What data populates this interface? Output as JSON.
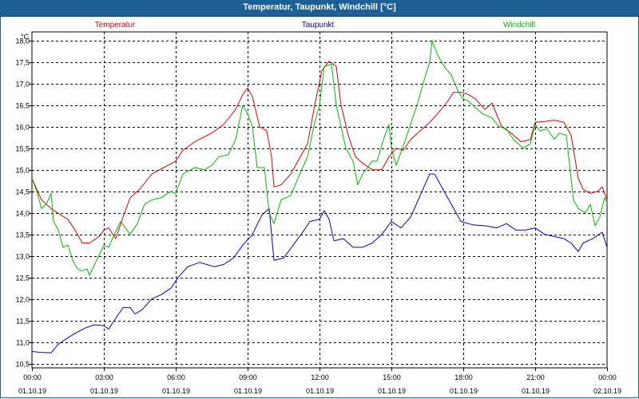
{
  "window": {
    "title": "Temperatur, Taupunkt, Windchill [°C]"
  },
  "chart_data": {
    "type": "line",
    "title": "Temperatur, Taupunkt, Windchill [°C]",
    "ylabel": "°C",
    "ylim": [
      10.4,
      18.2
    ],
    "xlim_hours": [
      0,
      24
    ],
    "grid": true,
    "legend_placement": "top",
    "yticks": [
      10.5,
      11.0,
      11.5,
      12.0,
      12.5,
      13.0,
      13.5,
      14.0,
      14.5,
      15.0,
      15.5,
      16.0,
      16.5,
      17.0,
      17.5,
      18.0
    ],
    "ytick_labels": [
      "10,5",
      "11,0",
      "11,5",
      "12,0",
      "12,5",
      "13,0",
      "13,5",
      "14,0",
      "14,5",
      "15,0",
      "15,5",
      "16,0",
      "16,5",
      "17,0",
      "17,5",
      "18,0"
    ],
    "xticks": [
      {
        "hour": 0,
        "time": "00:00",
        "date": "01.10.19"
      },
      {
        "hour": 3,
        "time": "03:00",
        "date": "01.10.19"
      },
      {
        "hour": 6,
        "time": "06:00",
        "date": "01.10.19"
      },
      {
        "hour": 9,
        "time": "09:00",
        "date": "01.10.19"
      },
      {
        "hour": 12,
        "time": "12:00",
        "date": "01.10.19"
      },
      {
        "hour": 15,
        "time": "15:00",
        "date": "01.10.19"
      },
      {
        "hour": 18,
        "time": "18:00",
        "date": "01.10.19"
      },
      {
        "hour": 21,
        "time": "21:00",
        "date": "01.10.19"
      },
      {
        "hour": 24,
        "time": "00:00",
        "date": "02.10.19"
      }
    ],
    "series": [
      {
        "name": "Temperatur",
        "color": "#dd0000",
        "points": [
          [
            0,
            14.8
          ],
          [
            0.4,
            14.3
          ],
          [
            0.8,
            14.1
          ],
          [
            1.2,
            13.95
          ],
          [
            1.5,
            13.85
          ],
          [
            1.8,
            13.6
          ],
          [
            2.1,
            13.3
          ],
          [
            2.4,
            13.3
          ],
          [
            2.8,
            13.45
          ],
          [
            3.0,
            13.6
          ],
          [
            3.2,
            13.65
          ],
          [
            3.5,
            13.4
          ],
          [
            3.8,
            13.9
          ],
          [
            4.1,
            14.35
          ],
          [
            4.5,
            14.55
          ],
          [
            5.0,
            14.9
          ],
          [
            5.5,
            15.05
          ],
          [
            6.0,
            15.2
          ],
          [
            6.3,
            15.45
          ],
          [
            6.8,
            15.65
          ],
          [
            7.5,
            15.85
          ],
          [
            8.0,
            16.05
          ],
          [
            8.5,
            16.4
          ],
          [
            8.8,
            16.75
          ],
          [
            9.0,
            16.9
          ],
          [
            9.2,
            16.7
          ],
          [
            9.5,
            16.0
          ],
          [
            9.8,
            15.9
          ],
          [
            10.0,
            15.3
          ],
          [
            10.1,
            14.6
          ],
          [
            10.4,
            14.65
          ],
          [
            10.8,
            14.9
          ],
          [
            11.2,
            15.3
          ],
          [
            11.5,
            15.6
          ],
          [
            11.8,
            16.5
          ],
          [
            12.1,
            17.3
          ],
          [
            12.4,
            17.52
          ],
          [
            12.7,
            17.4
          ],
          [
            12.9,
            16.5
          ],
          [
            13.2,
            15.8
          ],
          [
            13.5,
            15.3
          ],
          [
            13.8,
            15.15
          ],
          [
            14.2,
            15.0
          ],
          [
            14.6,
            15.0
          ],
          [
            14.9,
            15.3
          ],
          [
            15.2,
            15.5
          ],
          [
            15.5,
            15.45
          ],
          [
            15.8,
            15.7
          ],
          [
            16.2,
            15.9
          ],
          [
            16.6,
            16.1
          ],
          [
            17.0,
            16.35
          ],
          [
            17.3,
            16.55
          ],
          [
            17.6,
            16.8
          ],
          [
            17.9,
            16.8
          ],
          [
            18.2,
            16.75
          ],
          [
            18.5,
            16.65
          ],
          [
            18.9,
            16.4
          ],
          [
            19.2,
            16.55
          ],
          [
            19.6,
            16.0
          ],
          [
            20.0,
            15.85
          ],
          [
            20.4,
            15.65
          ],
          [
            20.8,
            15.7
          ],
          [
            21.0,
            16.1
          ],
          [
            21.4,
            16.12
          ],
          [
            21.8,
            16.15
          ],
          [
            22.2,
            16.1
          ],
          [
            22.5,
            15.8
          ],
          [
            22.8,
            14.8
          ],
          [
            23.0,
            14.55
          ],
          [
            23.3,
            14.45
          ],
          [
            23.6,
            14.5
          ],
          [
            23.8,
            14.6
          ],
          [
            24.0,
            14.3
          ]
        ]
      },
      {
        "name": "Taupunkt",
        "color": "#0000cc",
        "points": [
          [
            0,
            10.78
          ],
          [
            0.4,
            10.76
          ],
          [
            0.8,
            10.75
          ],
          [
            1.1,
            10.95
          ],
          [
            1.5,
            11.1
          ],
          [
            1.8,
            11.2
          ],
          [
            2.2,
            11.32
          ],
          [
            2.6,
            11.4
          ],
          [
            3.0,
            11.38
          ],
          [
            3.2,
            11.3
          ],
          [
            3.5,
            11.55
          ],
          [
            3.8,
            11.8
          ],
          [
            4.1,
            11.8
          ],
          [
            4.3,
            11.65
          ],
          [
            4.6,
            11.75
          ],
          [
            5.0,
            12.0
          ],
          [
            5.4,
            12.1
          ],
          [
            5.8,
            12.25
          ],
          [
            6.1,
            12.5
          ],
          [
            6.5,
            12.75
          ],
          [
            7.0,
            12.85
          ],
          [
            7.3,
            12.8
          ],
          [
            7.6,
            12.75
          ],
          [
            8.0,
            12.8
          ],
          [
            8.4,
            12.95
          ],
          [
            8.8,
            13.25
          ],
          [
            9.2,
            13.5
          ],
          [
            9.6,
            13.95
          ],
          [
            9.9,
            14.1
          ],
          [
            10.0,
            13.5
          ],
          [
            10.1,
            12.9
          ],
          [
            10.5,
            12.95
          ],
          [
            10.9,
            13.25
          ],
          [
            11.3,
            13.55
          ],
          [
            11.6,
            13.8
          ],
          [
            12.0,
            13.85
          ],
          [
            12.2,
            14.05
          ],
          [
            12.4,
            13.85
          ],
          [
            12.6,
            13.35
          ],
          [
            13.0,
            13.4
          ],
          [
            13.4,
            13.2
          ],
          [
            13.8,
            13.2
          ],
          [
            14.2,
            13.3
          ],
          [
            14.6,
            13.5
          ],
          [
            15.0,
            13.8
          ],
          [
            15.4,
            13.65
          ],
          [
            15.8,
            13.9
          ],
          [
            16.2,
            14.4
          ],
          [
            16.6,
            14.9
          ],
          [
            16.8,
            14.9
          ],
          [
            17.1,
            14.6
          ],
          [
            17.5,
            14.2
          ],
          [
            17.9,
            13.8
          ],
          [
            18.4,
            13.72
          ],
          [
            18.9,
            13.7
          ],
          [
            19.4,
            13.65
          ],
          [
            19.8,
            13.75
          ],
          [
            20.2,
            13.6
          ],
          [
            20.6,
            13.6
          ],
          [
            21.0,
            13.65
          ],
          [
            21.4,
            13.5
          ],
          [
            21.8,
            13.45
          ],
          [
            22.2,
            13.4
          ],
          [
            22.5,
            13.3
          ],
          [
            22.8,
            13.1
          ],
          [
            23.0,
            13.3
          ],
          [
            23.4,
            13.4
          ],
          [
            23.8,
            13.55
          ],
          [
            24.0,
            13.2
          ]
        ]
      },
      {
        "name": "Windchill",
        "color": "#00bb00",
        "points": [
          [
            0,
            14.8
          ],
          [
            0.2,
            14.5
          ],
          [
            0.4,
            14.1
          ],
          [
            0.6,
            14.2
          ],
          [
            0.8,
            14.45
          ],
          [
            0.9,
            13.8
          ],
          [
            1.1,
            13.6
          ],
          [
            1.3,
            13.2
          ],
          [
            1.5,
            13.25
          ],
          [
            1.7,
            12.9
          ],
          [
            1.9,
            12.7
          ],
          [
            2.1,
            12.65
          ],
          [
            2.3,
            12.7
          ],
          [
            2.4,
            12.55
          ],
          [
            2.7,
            12.9
          ],
          [
            3.0,
            13.25
          ],
          [
            3.2,
            13.2
          ],
          [
            3.4,
            13.45
          ],
          [
            3.7,
            13.8
          ],
          [
            3.9,
            13.65
          ],
          [
            4.1,
            13.5
          ],
          [
            4.4,
            13.75
          ],
          [
            4.7,
            14.2
          ],
          [
            5.0,
            14.3
          ],
          [
            5.4,
            14.35
          ],
          [
            5.8,
            14.5
          ],
          [
            6.0,
            14.45
          ],
          [
            6.3,
            14.9
          ],
          [
            6.8,
            15.05
          ],
          [
            7.2,
            15.0
          ],
          [
            7.5,
            15.1
          ],
          [
            7.8,
            15.3
          ],
          [
            8.2,
            15.35
          ],
          [
            8.5,
            15.7
          ],
          [
            8.8,
            16.5
          ],
          [
            9.0,
            16.3
          ],
          [
            9.2,
            16.0
          ],
          [
            9.4,
            15.05
          ],
          [
            9.7,
            15.05
          ],
          [
            9.9,
            14.0
          ],
          [
            10.1,
            13.75
          ],
          [
            10.4,
            14.3
          ],
          [
            10.8,
            14.4
          ],
          [
            11.1,
            14.8
          ],
          [
            11.5,
            15.3
          ],
          [
            11.8,
            16.1
          ],
          [
            12.0,
            16.5
          ],
          [
            12.2,
            17.4
          ],
          [
            12.5,
            17.45
          ],
          [
            12.7,
            16.5
          ],
          [
            12.9,
            16.0
          ],
          [
            13.1,
            15.5
          ],
          [
            13.4,
            15.2
          ],
          [
            13.6,
            14.65
          ],
          [
            13.8,
            14.9
          ],
          [
            14.0,
            15.05
          ],
          [
            14.2,
            15.2
          ],
          [
            14.4,
            15.2
          ],
          [
            14.7,
            15.75
          ],
          [
            14.9,
            16.05
          ],
          [
            15.0,
            15.5
          ],
          [
            15.2,
            15.1
          ],
          [
            15.5,
            15.55
          ],
          [
            15.8,
            16.05
          ],
          [
            16.1,
            16.55
          ],
          [
            16.4,
            17.15
          ],
          [
            16.6,
            17.5
          ],
          [
            16.7,
            18.0
          ],
          [
            16.9,
            17.7
          ],
          [
            17.2,
            17.4
          ],
          [
            17.5,
            17.2
          ],
          [
            17.8,
            16.8
          ],
          [
            18.0,
            16.65
          ],
          [
            18.2,
            16.6
          ],
          [
            18.5,
            16.45
          ],
          [
            18.8,
            16.3
          ],
          [
            19.2,
            16.2
          ],
          [
            19.5,
            16.0
          ],
          [
            19.8,
            15.95
          ],
          [
            20.1,
            15.7
          ],
          [
            20.5,
            15.5
          ],
          [
            20.8,
            15.6
          ],
          [
            21.0,
            16.05
          ],
          [
            21.2,
            15.9
          ],
          [
            21.5,
            15.95
          ],
          [
            21.8,
            15.7
          ],
          [
            22.0,
            15.85
          ],
          [
            22.3,
            15.8
          ],
          [
            22.6,
            14.3
          ],
          [
            22.8,
            14.1
          ],
          [
            23.1,
            14.0
          ],
          [
            23.3,
            14.2
          ],
          [
            23.5,
            13.7
          ],
          [
            23.7,
            13.9
          ],
          [
            23.9,
            14.35
          ],
          [
            24.0,
            14.25
          ]
        ]
      }
    ]
  }
}
